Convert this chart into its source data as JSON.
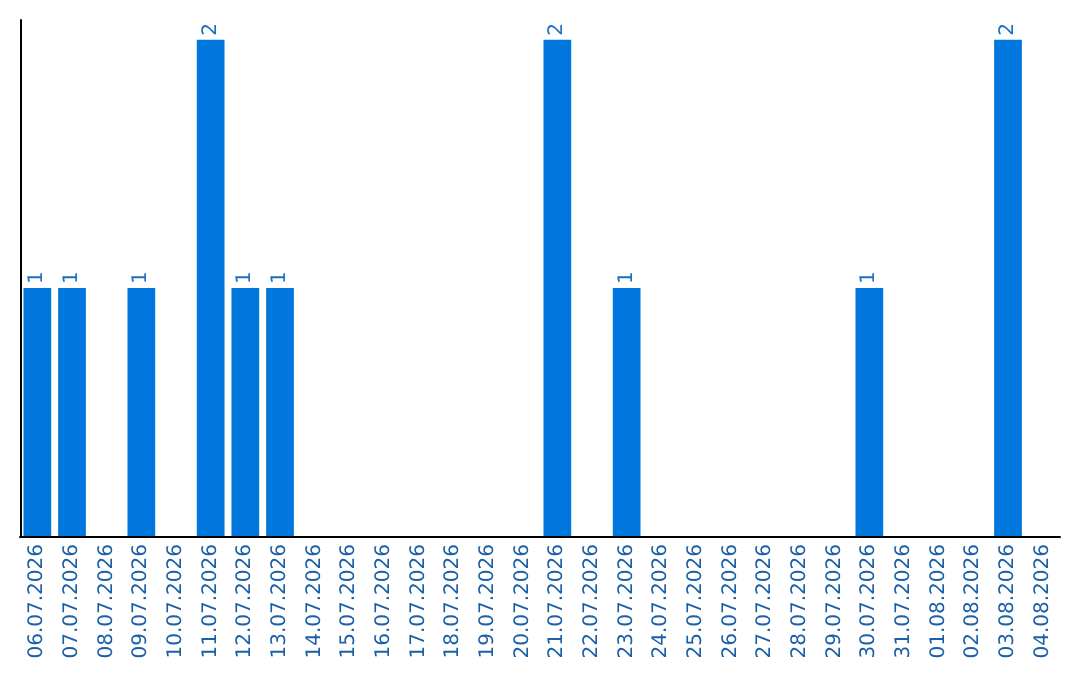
{
  "chart_data": {
    "type": "bar",
    "categories": [
      "06.07.2026",
      "07.07.2026",
      "08.07.2026",
      "09.07.2026",
      "10.07.2026",
      "11.07.2026",
      "12.07.2026",
      "13.07.2026",
      "14.07.2026",
      "15.07.2026",
      "16.07.2026",
      "17.07.2026",
      "18.07.2026",
      "19.07.2026",
      "20.07.2026",
      "21.07.2026",
      "22.07.2026",
      "23.07.2026",
      "24.07.2026",
      "25.07.2026",
      "26.07.2026",
      "27.07.2026",
      "28.07.2026",
      "29.07.2026",
      "30.07.2026",
      "31.07.2026",
      "01.08.2026",
      "02.08.2026",
      "03.08.2026",
      "04.08.2026"
    ],
    "values": [
      1,
      1,
      0,
      1,
      0,
      2,
      1,
      1,
      0,
      0,
      0,
      0,
      0,
      0,
      0,
      2,
      0,
      1,
      0,
      0,
      0,
      0,
      0,
      0,
      1,
      0,
      0,
      0,
      2,
      0
    ],
    "value_labels": [
      "1",
      "1",
      null,
      "1",
      null,
      "2",
      "1",
      "1",
      null,
      null,
      null,
      null,
      null,
      null,
      null,
      "2",
      null,
      "1",
      null,
      null,
      null,
      null,
      null,
      null,
      "1",
      null,
      null,
      null,
      "2",
      null
    ],
    "color": "#0077dd"
  }
}
